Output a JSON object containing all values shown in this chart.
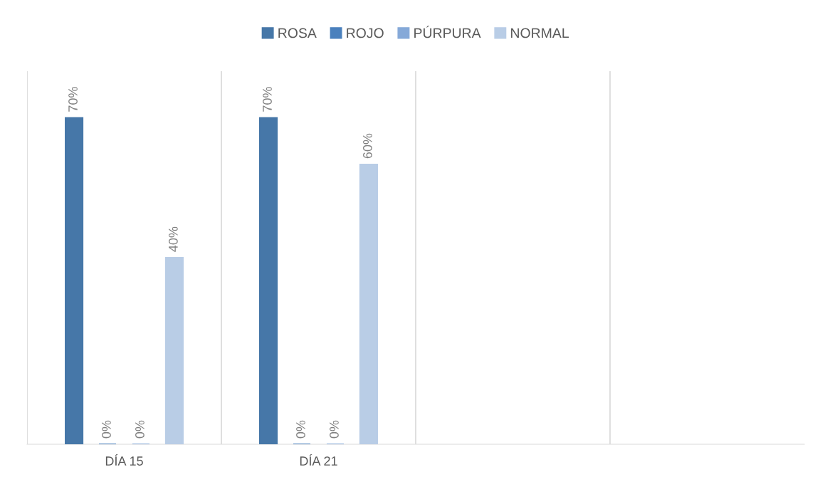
{
  "chart_data": {
    "type": "bar",
    "categories": [
      "DÍA 15",
      "DÍA 21",
      null,
      null
    ],
    "series": [
      {
        "name": "ROSA",
        "color": "#4677a8",
        "values": [
          70,
          70,
          null,
          null
        ],
        "value_labels": [
          "70%",
          "70%",
          null,
          null
        ]
      },
      {
        "name": "ROJO",
        "color": "#4a80bd",
        "values": [
          0,
          0,
          null,
          null
        ],
        "value_labels": [
          "0%",
          "0%",
          null,
          null
        ]
      },
      {
        "name": "PÚRPURA",
        "color": "#85a9d8",
        "values": [
          0,
          0,
          null,
          null
        ],
        "value_labels": [
          "0%",
          "0%",
          null,
          null
        ]
      },
      {
        "name": "NORMAL",
        "color": "#b9cde6",
        "values": [
          40,
          60,
          null,
          null
        ],
        "value_labels": [
          "40%",
          "60%",
          null,
          null
        ]
      }
    ],
    "tick_labels": "x",
    "grid": "x",
    "legend": "top"
  }
}
